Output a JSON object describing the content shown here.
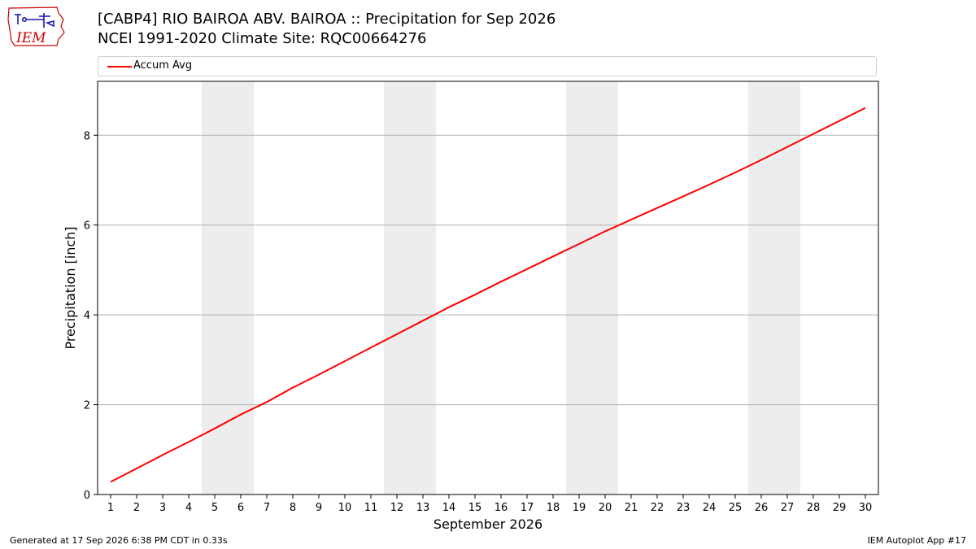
{
  "logo": {
    "text": "IEM",
    "text_color": "#cc0000",
    "outline_color": "#cc0000",
    "icon_color": "#1a1aa8"
  },
  "title": {
    "line1": "[CABP4] RIO BAIROA ABV. BAIROA :: Precipitation for Sep 2026",
    "line2": "NCEI 1991-2020 Climate Site: RQC00664276"
  },
  "legend": {
    "entries": [
      {
        "label": "Accum Avg",
        "color": "#ff0000"
      }
    ],
    "placement": "top"
  },
  "footer": {
    "left": "Generated at 17 Sep 2026 6:38 PM CDT in 0.33s",
    "right": "IEM Autoplot App #17"
  },
  "chart_data": {
    "type": "line",
    "xlabel": "September 2026",
    "ylabel": "Precipitation [inch]",
    "xlim": [
      0.5,
      30.5
    ],
    "ylim": [
      0,
      9.2
    ],
    "x_ticks": [
      1,
      2,
      3,
      4,
      5,
      6,
      7,
      8,
      9,
      10,
      11,
      12,
      13,
      14,
      15,
      16,
      17,
      18,
      19,
      20,
      21,
      22,
      23,
      24,
      25,
      26,
      27,
      28,
      29,
      30
    ],
    "y_ticks": [
      0,
      2,
      4,
      6,
      8
    ],
    "grid": "horizontal",
    "weekend_shading": [
      [
        5,
        6
      ],
      [
        12,
        13
      ],
      [
        19,
        20
      ],
      [
        26,
        27
      ]
    ],
    "shading_color": "#ededed",
    "series": [
      {
        "name": "Accum Avg",
        "color": "#ff0000",
        "x": [
          1,
          2,
          3,
          4,
          5,
          6,
          7,
          8,
          9,
          10,
          11,
          12,
          13,
          14,
          15,
          16,
          17,
          18,
          19,
          20,
          21,
          22,
          23,
          24,
          25,
          26,
          27,
          28,
          29,
          30
        ],
        "y": [
          0.28,
          0.58,
          0.88,
          1.17,
          1.47,
          1.78,
          2.06,
          2.38,
          2.67,
          2.97,
          3.27,
          3.57,
          3.87,
          4.17,
          4.45,
          4.74,
          5.02,
          5.3,
          5.58,
          5.86,
          6.12,
          6.38,
          6.64,
          6.9,
          7.17,
          7.45,
          7.74,
          8.03,
          8.32,
          8.61
        ]
      }
    ]
  }
}
